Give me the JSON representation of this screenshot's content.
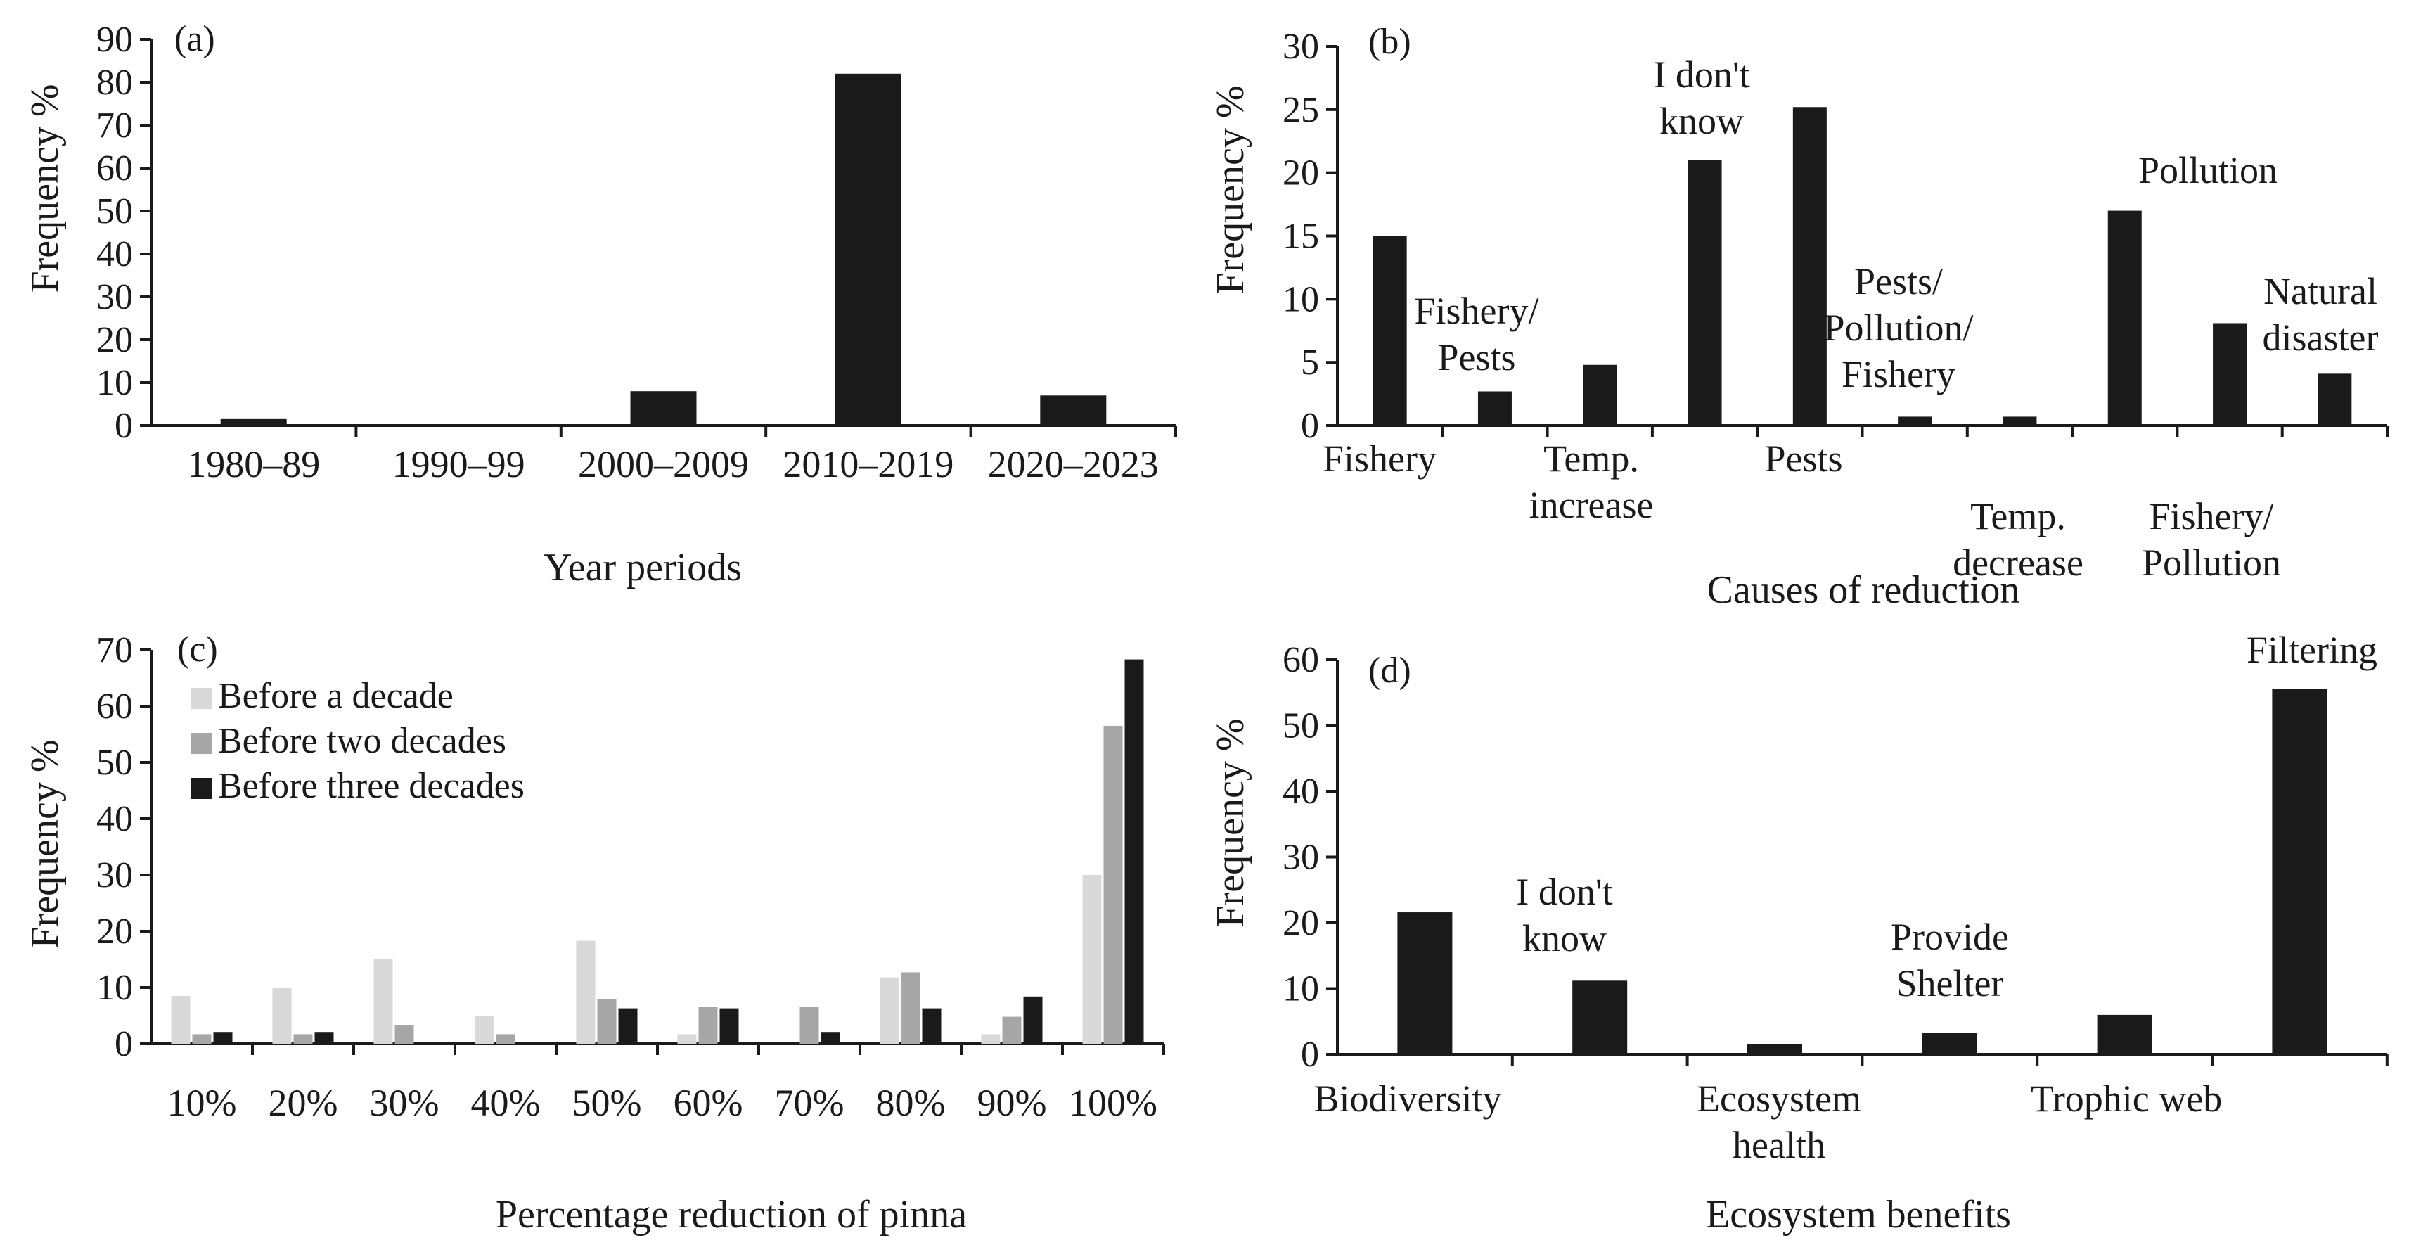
{
  "chart_data": [
    {
      "panel_label": "(a)",
      "type": "bar",
      "xlabel": "Year periods",
      "ylabel": "Frequency %",
      "ylim": [
        0,
        90
      ],
      "yticks": [
        0,
        10,
        20,
        30,
        40,
        50,
        60,
        70,
        80,
        90
      ],
      "categories": [
        "1980–89",
        "1990–99",
        "2000–2009",
        "2010–2019",
        "2020–2023"
      ],
      "values": [
        1.5,
        0,
        8,
        82,
        7
      ],
      "color": "#1a1a1a"
    },
    {
      "panel_label": "(b)",
      "type": "bar",
      "xlabel": "Causes of reduction",
      "ylabel": "Frequency %",
      "ylim": [
        0,
        30
      ],
      "yticks": [
        0,
        5,
        10,
        15,
        20,
        25,
        30
      ],
      "categories": [
        "Fishery",
        "Fishery/\nPests",
        "Temp.\nincrease",
        "I don't\nknow",
        "Pests",
        "Pests/\nPollution/\nFishery",
        "Temp.\ndecrease",
        "Pollution",
        "Fishery/\nPollution",
        "Natural\ndisaster"
      ],
      "values": [
        15,
        2.7,
        4.8,
        21,
        25.2,
        0.7,
        0.7,
        17,
        8.1,
        4.1
      ],
      "color": "#1a1a1a"
    },
    {
      "panel_label": "(c)",
      "type": "bar",
      "xlabel": "Percentage reduction of pinna",
      "ylabel": "Frequency %",
      "ylim": [
        0,
        70
      ],
      "yticks": [
        0,
        10,
        20,
        30,
        40,
        50,
        60,
        70
      ],
      "categories": [
        "10%",
        "20%",
        "30%",
        "40%",
        "50%",
        "60%",
        "70%",
        "80%",
        "90%",
        "100%"
      ],
      "series": [
        {
          "name": "Before a decade",
          "color": "#d9d9d9",
          "values": [
            8.5,
            10,
            15,
            5,
            18.3,
            1.7,
            0,
            11.8,
            1.7,
            30
          ]
        },
        {
          "name": "Before two decades",
          "color": "#a6a6a6",
          "values": [
            1.7,
            1.7,
            3.3,
            1.7,
            8,
            6.5,
            6.5,
            12.7,
            4.8,
            56.5
          ]
        },
        {
          "name": "Before three decades",
          "color": "#1a1a1a",
          "values": [
            2.1,
            2.1,
            0,
            0,
            6.3,
            6.3,
            2.1,
            6.3,
            8.4,
            68.3
          ]
        }
      ]
    },
    {
      "panel_label": "(d)",
      "type": "bar",
      "xlabel": "Ecosystem benefits",
      "ylabel": "Frequency %",
      "ylim": [
        0,
        60
      ],
      "yticks": [
        0,
        10,
        20,
        30,
        40,
        50,
        60
      ],
      "categories": [
        "Biodiversity",
        "I don't\nknow",
        "Ecosystem\nhealth",
        "Provide\nShelter",
        "Trophic web",
        "Filtering"
      ],
      "values": [
        21.6,
        11.2,
        1.6,
        3.3,
        6,
        55.6
      ],
      "color": "#1a1a1a"
    }
  ]
}
